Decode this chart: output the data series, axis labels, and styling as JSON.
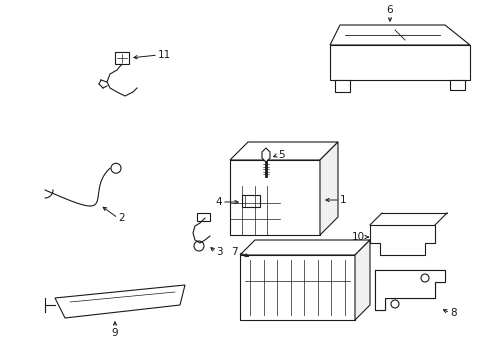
{
  "bg_color": "#ffffff",
  "fig_width": 4.89,
  "fig_height": 3.6,
  "dpi": 100,
  "line_color": "#1a1a1a",
  "label_fontsize": 7.5
}
